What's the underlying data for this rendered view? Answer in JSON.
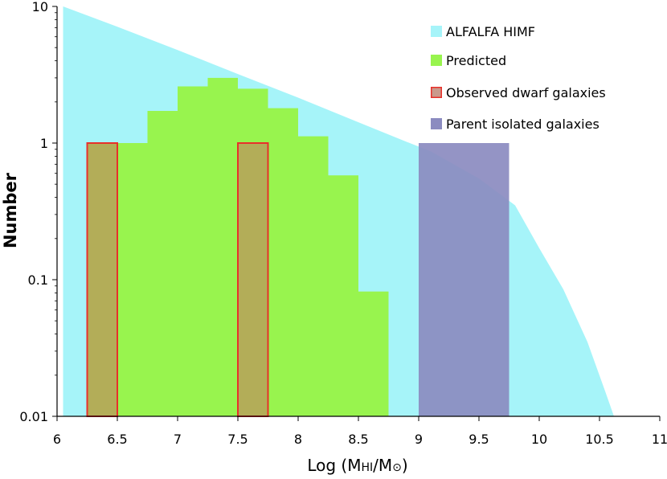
{
  "chart_data": {
    "type": "bar",
    "x_axis": {
      "label_main": "Log (M",
      "label_sub": "HI",
      "label_mid": "/M",
      "label_sun": "⊙",
      "label_end": ")",
      "range": [
        6,
        11
      ],
      "ticks": [
        6,
        6.5,
        7,
        7.5,
        8,
        8.5,
        9,
        9.5,
        10,
        10.5,
        11
      ],
      "tick_labels": [
        "6",
        "6.5",
        "7",
        "7.5",
        "8",
        "8.5",
        "9",
        "9.5",
        "10",
        "10.5",
        "11"
      ]
    },
    "y_axis": {
      "label": "Number",
      "scale": "log",
      "range": [
        0.01,
        10
      ],
      "ticks": [
        0.01,
        0.1,
        1,
        10
      ],
      "tick_labels": [
        "0.01",
        "0.1",
        "1",
        "10"
      ]
    },
    "legend_position": "top-right",
    "series": [
      {
        "name": "ALFALFA HIMF",
        "kind": "area",
        "color": "#a6f4f9",
        "points": [
          [
            6.05,
            10
          ],
          [
            6.5,
            7.1
          ],
          [
            7.0,
            4.8
          ],
          [
            7.5,
            3.2
          ],
          [
            8.0,
            2.15
          ],
          [
            8.5,
            1.42
          ],
          [
            8.9,
            1.02
          ],
          [
            9.1,
            0.87
          ],
          [
            9.5,
            0.55
          ],
          [
            9.8,
            0.35
          ],
          [
            10.0,
            0.17
          ],
          [
            10.2,
            0.085
          ],
          [
            10.4,
            0.035
          ],
          [
            10.55,
            0.015
          ],
          [
            10.62,
            0.01
          ]
        ]
      },
      {
        "name": "Predicted",
        "kind": "histogram",
        "color": "#98f44e",
        "bin_width": 0.25,
        "bin_starts": [
          6.25,
          6.5,
          6.75,
          7.0,
          7.25,
          7.5,
          7.75,
          8.0,
          8.25,
          8.5
        ],
        "values": [
          1.0,
          1.0,
          1.72,
          2.6,
          3.0,
          2.5,
          1.8,
          1.12,
          0.58,
          0.082
        ]
      },
      {
        "name": "Observed dwarf galaxies",
        "kind": "histogram",
        "color": "#b3ad58",
        "edge_color": "#e8302a",
        "bin_width": 0.25,
        "bin_starts": [
          6.25,
          7.5
        ],
        "values": [
          1,
          1
        ]
      },
      {
        "name": "Parent isolated galaxies",
        "kind": "histogram",
        "color": "#8b8bc0",
        "bin_width": 0.75,
        "bin_starts": [
          9.0
        ],
        "values": [
          1
        ]
      }
    ]
  }
}
